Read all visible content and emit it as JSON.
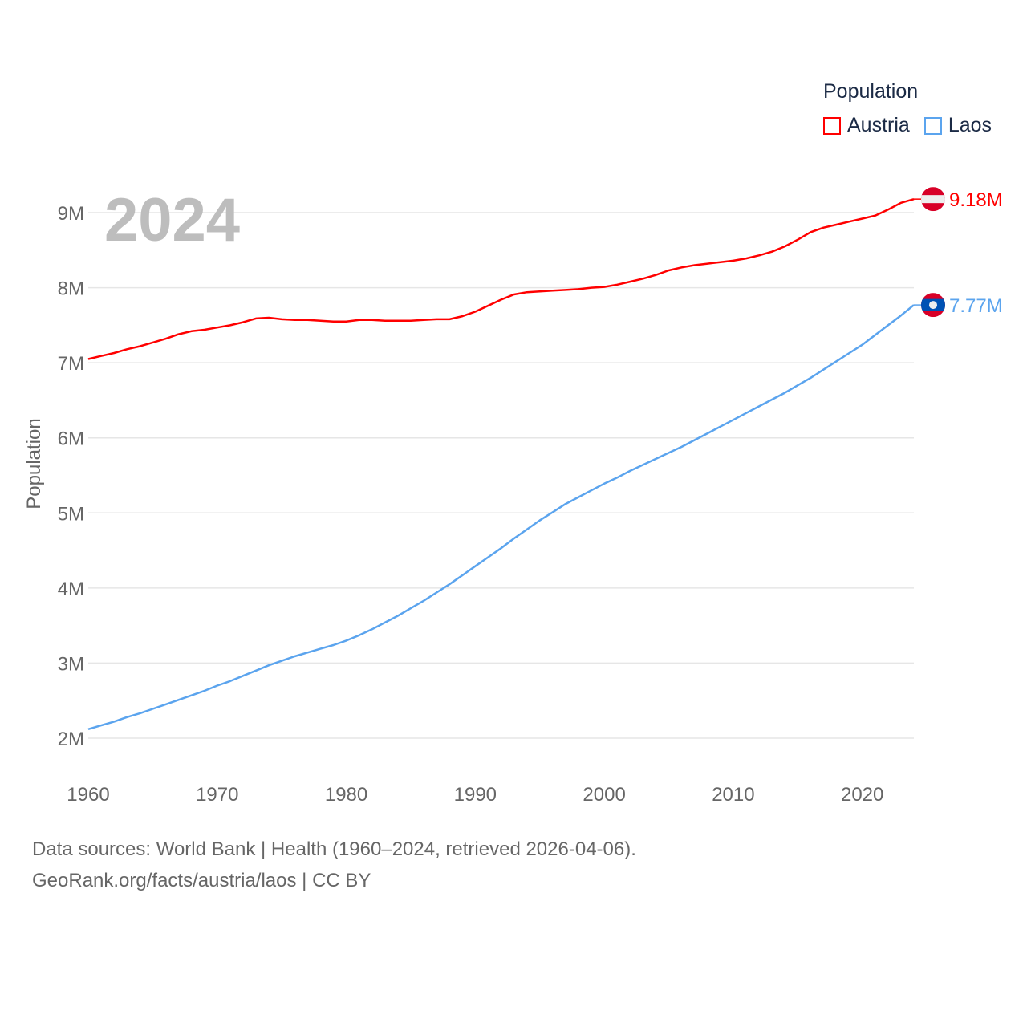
{
  "chart_data": {
    "type": "line",
    "year_label": "2024",
    "ylabel": "Population",
    "xlim": [
      1960,
      2024
    ],
    "ylim": [
      2000000,
      9000000
    ],
    "x_ticks": [
      1960,
      1970,
      1980,
      1990,
      2000,
      2010,
      2020
    ],
    "x_tick_labels": [
      "1960",
      "1970",
      "1980",
      "1990",
      "2000",
      "2010",
      "2020"
    ],
    "y_ticks": [
      2000000,
      3000000,
      4000000,
      5000000,
      6000000,
      7000000,
      8000000,
      9000000
    ],
    "y_tick_labels": [
      "2M",
      "3M",
      "4M",
      "5M",
      "6M",
      "7M",
      "8M",
      "9M"
    ],
    "grid": true,
    "legend": {
      "title": "Population",
      "placement": "top-right"
    },
    "x_start": 1960,
    "series": [
      {
        "name": "Austria",
        "color": "#ff0000",
        "end_label": "9.18M",
        "flag": "austria-flag",
        "values_millions": [
          7.05,
          7.09,
          7.13,
          7.18,
          7.22,
          7.27,
          7.32,
          7.38,
          7.42,
          7.44,
          7.47,
          7.5,
          7.54,
          7.59,
          7.6,
          7.58,
          7.57,
          7.57,
          7.56,
          7.55,
          7.55,
          7.57,
          7.57,
          7.56,
          7.56,
          7.56,
          7.57,
          7.58,
          7.58,
          7.62,
          7.68,
          7.76,
          7.84,
          7.91,
          7.94,
          7.95,
          7.96,
          7.97,
          7.98,
          8.0,
          8.01,
          8.04,
          8.08,
          8.12,
          8.17,
          8.23,
          8.27,
          8.3,
          8.32,
          8.34,
          8.36,
          8.39,
          8.43,
          8.48,
          8.55,
          8.64,
          8.74,
          8.8,
          8.84,
          8.88,
          8.92,
          8.96,
          9.04,
          9.13,
          9.18
        ]
      },
      {
        "name": "Laos",
        "color": "#5ba4ee",
        "end_label": "7.77M",
        "flag": "laos-flag",
        "values_millions": [
          2.12,
          2.17,
          2.22,
          2.28,
          2.33,
          2.39,
          2.45,
          2.51,
          2.57,
          2.63,
          2.7,
          2.76,
          2.83,
          2.9,
          2.97,
          3.03,
          3.09,
          3.14,
          3.19,
          3.24,
          3.3,
          3.37,
          3.45,
          3.54,
          3.63,
          3.73,
          3.83,
          3.94,
          4.05,
          4.17,
          4.29,
          4.41,
          4.53,
          4.66,
          4.78,
          4.9,
          5.01,
          5.12,
          5.21,
          5.3,
          5.39,
          5.47,
          5.56,
          5.64,
          5.72,
          5.8,
          5.88,
          5.97,
          6.06,
          6.15,
          6.24,
          6.33,
          6.42,
          6.51,
          6.6,
          6.7,
          6.8,
          6.91,
          7.02,
          7.13,
          7.24,
          7.37,
          7.5,
          7.63,
          7.77
        ]
      }
    ]
  },
  "footer": {
    "line1": "Data sources: World Bank | Health (1960–2024, retrieved 2026-04-06).",
    "line2": "GeoRank.org/facts/austria/laos | CC BY"
  }
}
